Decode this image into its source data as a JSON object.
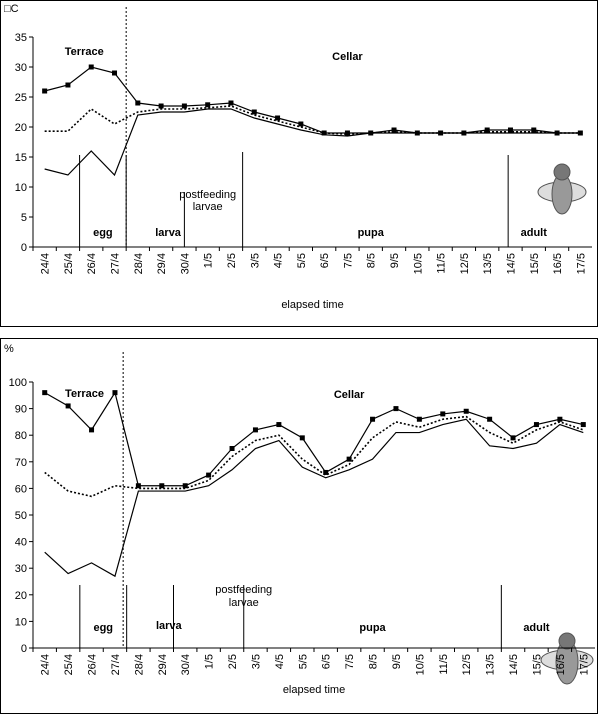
{
  "chart_data": [
    {
      "type": "line",
      "y_label": "□C",
      "x_label": "elapsed time",
      "categories": [
        "24/4",
        "25/4",
        "26/4",
        "27/4",
        "28/4",
        "29/4",
        "30/4",
        "1/5",
        "2/5",
        "3/5",
        "4/5",
        "5/5",
        "6/5",
        "7/5",
        "8/5",
        "9/5",
        "10/5",
        "11/5",
        "12/5",
        "13/5",
        "14/5",
        "15/5",
        "16/5",
        "17/5"
      ],
      "ylim": [
        0,
        35
      ],
      "yticks": [
        0,
        5,
        10,
        15,
        20,
        25,
        30,
        35
      ],
      "annotations": [
        "Terrace",
        "Cellar",
        "egg",
        "larva",
        "postfeeding",
        "larvae",
        "pupa",
        "adult"
      ],
      "series": [
        {
          "color": "#000000",
          "marker": "square",
          "values": [
            26,
            27,
            30,
            29,
            24,
            23.5,
            23.5,
            23.7,
            24,
            22.5,
            21.5,
            20.5,
            19,
            19,
            19,
            19.5,
            19,
            19,
            19,
            19.5,
            19.5,
            19.5,
            19,
            19
          ]
        },
        {
          "color": "#000000",
          "dash": "dotted",
          "values": [
            19.3,
            19.3,
            23,
            20.5,
            22.5,
            23,
            23,
            23.2,
            23.5,
            22,
            21,
            20,
            19,
            18.8,
            19,
            19.2,
            19,
            19,
            19,
            19.2,
            19.2,
            19.2,
            19,
            19
          ]
        },
        {
          "color": "#000000",
          "values": [
            13,
            12,
            16,
            12,
            22,
            22.5,
            22.5,
            23,
            23,
            21.5,
            20.5,
            19.5,
            18.7,
            18.5,
            19,
            19,
            19,
            19,
            19,
            19,
            19,
            19,
            19,
            19
          ]
        }
      ]
    },
    {
      "type": "line",
      "y_label": "%",
      "x_label": "elapsed time",
      "categories": [
        "24/4",
        "25/4",
        "26/4",
        "27/4",
        "28/4",
        "29/4",
        "30/4",
        "1/5",
        "2/5",
        "3/5",
        "4/5",
        "5/5",
        "6/5",
        "7/5",
        "8/5",
        "9/5",
        "10/5",
        "11/5",
        "12/5",
        "13/5",
        "14/5",
        "15/5",
        "16/5",
        "17/5"
      ],
      "ylim": [
        0,
        100
      ],
      "yticks": [
        0,
        10,
        20,
        30,
        40,
        50,
        60,
        70,
        80,
        90,
        100
      ],
      "annotations": [
        "Terrace",
        "Cellar",
        "egg",
        "larva",
        "postfeeding",
        "larvae",
        "pupa",
        "adult"
      ],
      "series": [
        {
          "color": "#000000",
          "marker": "square",
          "values": [
            96,
            91,
            82,
            96,
            61,
            61,
            61,
            65,
            75,
            82,
            84,
            79,
            66,
            71,
            86,
            90,
            86,
            88,
            89,
            86,
            79,
            84,
            86,
            84
          ]
        },
        {
          "color": "#000000",
          "dash": "dotted",
          "values": [
            66,
            59,
            57,
            61,
            60,
            60,
            60,
            63,
            72,
            78,
            80,
            71,
            65,
            69,
            79,
            85,
            83,
            86,
            87,
            81,
            77,
            82,
            85,
            82
          ]
        },
        {
          "color": "#000000",
          "values": [
            36,
            28,
            32,
            27,
            59,
            59,
            59,
            61,
            67,
            75,
            78,
            68,
            64,
            67,
            71,
            81,
            81,
            84,
            86,
            76,
            75,
            77,
            84,
            81
          ]
        }
      ]
    }
  ]
}
